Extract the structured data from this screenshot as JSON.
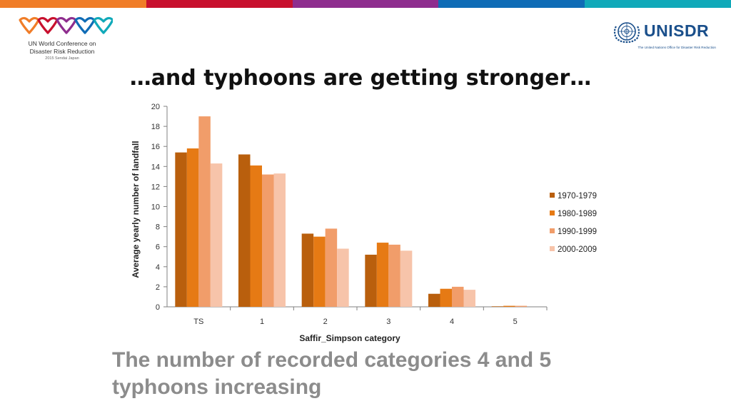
{
  "topbar_colors": [
    "#f07d28",
    "#c8102e",
    "#8e2d8e",
    "#0f6cb6",
    "#10a9b9"
  ],
  "left_logo": {
    "icon": "hearts-logo-icon",
    "heart_colors": [
      "#f07d28",
      "#c8102e",
      "#8e2d8e",
      "#0f6cb6",
      "#10a9b9"
    ],
    "line1": "UN World Conference on",
    "line2": "Disaster Risk Reduction",
    "line3": "2015 Sendai Japan"
  },
  "right_logo": {
    "icon": "un-emblem-icon",
    "name": "UNISDR",
    "tagline": "The United Nations Office for Disaster Risk Reduction",
    "color": "#1a4f8b"
  },
  "title": "…and typhoons are getting stronger…",
  "caption": {
    "line1": "The number of recorded categories 4 and 5",
    "line2": "typhoons increasing"
  },
  "chart_data": {
    "type": "bar",
    "title": "",
    "xlabel": "Saffir_Simpson category",
    "ylabel": "Average yearly number of landfall",
    "categories": [
      "TS",
      "1",
      "2",
      "3",
      "4",
      "5"
    ],
    "ylim": [
      0,
      20
    ],
    "yticks": [
      0,
      2,
      4,
      6,
      8,
      10,
      12,
      14,
      16,
      18,
      20
    ],
    "grid": false,
    "legend_position": "right",
    "series": [
      {
        "name": "1970-1979",
        "color": "#b95f0d",
        "values": [
          15.4,
          15.2,
          7.3,
          5.2,
          1.3,
          0.05
        ]
      },
      {
        "name": "1980-1989",
        "color": "#e67a14",
        "values": [
          15.8,
          14.1,
          7.0,
          6.4,
          1.8,
          0.1
        ]
      },
      {
        "name": "1990-1999",
        "color": "#f19d6a",
        "values": [
          19.0,
          13.2,
          7.8,
          6.2,
          2.0,
          0.1
        ]
      },
      {
        "name": "2000-2009",
        "color": "#f7c4aa",
        "values": [
          14.3,
          13.3,
          5.8,
          5.6,
          1.7,
          0.0
        ]
      }
    ]
  }
}
